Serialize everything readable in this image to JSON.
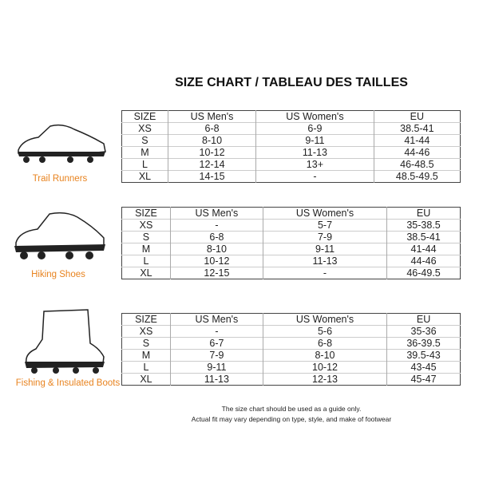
{
  "title": "SIZE CHART / TABLEAU DES TAILLES",
  "headers": [
    "SIZE",
    "US Men's",
    "US Women's",
    "EU"
  ],
  "sections": [
    {
      "label": "Trail Runners",
      "rows": [
        [
          "XS",
          "6-8",
          "6-9",
          "38.5-41"
        ],
        [
          "S",
          "8-10",
          "9-11",
          "41-44"
        ],
        [
          "M",
          "10-12",
          "11-13",
          "44-46"
        ],
        [
          "L",
          "12-14",
          "13+",
          "46-48.5"
        ],
        [
          "XL",
          "14-15",
          "-",
          "48.5-49.5"
        ]
      ]
    },
    {
      "label": "Hiking Shoes",
      "rows": [
        [
          "XS",
          "-",
          "5-7",
          "35-38.5"
        ],
        [
          "S",
          "6-8",
          "7-9",
          "38.5-41"
        ],
        [
          "M",
          "8-10",
          "9-11",
          "41-44"
        ],
        [
          "L",
          "10-12",
          "11-13",
          "44-46"
        ],
        [
          "XL",
          "12-15",
          "-",
          "46-49.5"
        ]
      ]
    },
    {
      "label": "Fishing & Insulated Boots",
      "rows": [
        [
          "XS",
          "-",
          "5-6",
          "35-36"
        ],
        [
          "S",
          "6-7",
          "6-8",
          "36-39.5"
        ],
        [
          "M",
          "7-9",
          "8-10",
          "39.5-43"
        ],
        [
          "L",
          "9-11",
          "10-12",
          "43-45"
        ],
        [
          "XL",
          "11-13",
          "12-13",
          "45-47"
        ]
      ]
    }
  ],
  "note": [
    "The size chart should be used as a guide only.",
    "Actual fit may vary depending on type, style, and make of footwear"
  ],
  "label_color": "#e8831f"
}
